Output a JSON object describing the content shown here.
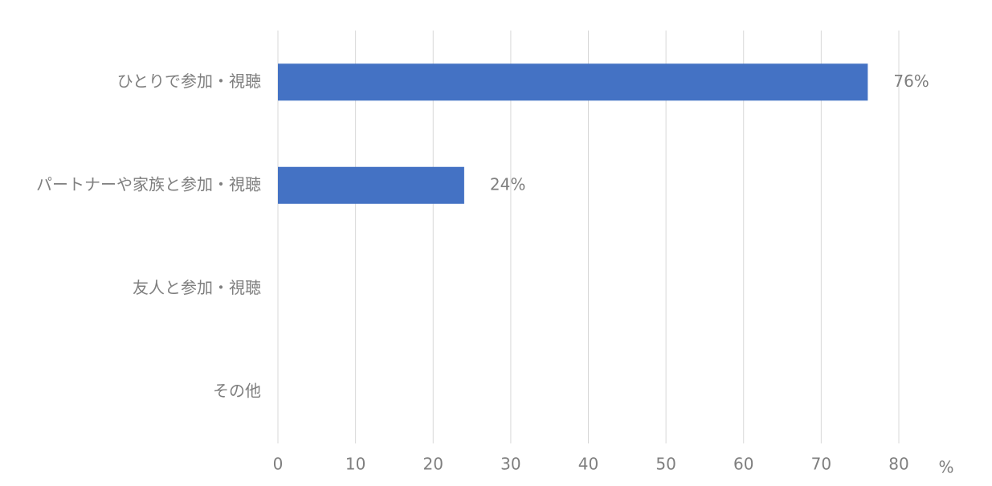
{
  "chart_data": {
    "type": "bar",
    "orientation": "horizontal",
    "categories": [
      "ひとりで参加・視聴",
      "パートナーや家族と参加・視聴",
      "友人と参加・視聴",
      "その他"
    ],
    "values": [
      76,
      24,
      0,
      0
    ],
    "value_labels": [
      "76%",
      "24%",
      null,
      null
    ],
    "color": "#4472c4",
    "x_label": "%",
    "xlim": [
      0,
      80
    ],
    "xticks": [
      0,
      10,
      20,
      30,
      40,
      50,
      60,
      70,
      80
    ],
    "grid": true
  }
}
